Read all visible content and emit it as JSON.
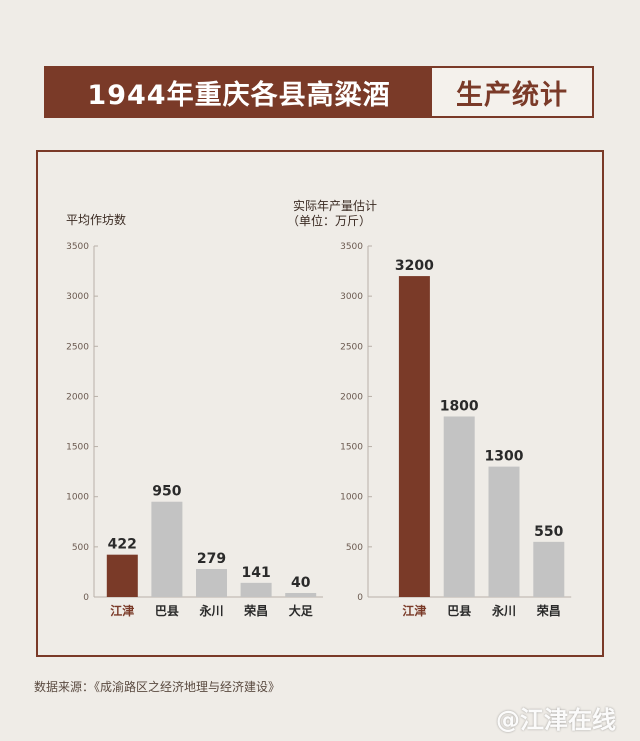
{
  "header": {
    "title_main": "1944年重庆各县高粱酒",
    "title_sub": "生产统计"
  },
  "source_note": "数据来源：《成渝路区之经济地理与经济建设》",
  "watermark": "@江津在线",
  "colors": {
    "highlight": "#7a3a28",
    "bar": "#c3c3c3",
    "axis": "#b8b0a8"
  },
  "chart_data": [
    {
      "type": "bar",
      "title": "",
      "ylabel": "平均作坊数",
      "categories": [
        "江津",
        "巴县",
        "永川",
        "荣昌",
        "大足"
      ],
      "values": [
        422,
        950,
        279,
        141,
        40
      ],
      "data_labels": [
        "422",
        "950",
        "279",
        "141",
        "40"
      ],
      "highlight_category": "江津",
      "ylim": [
        0,
        3500
      ],
      "yticks": [
        "0",
        "500",
        "1000",
        "1500",
        "2000",
        "2500",
        "3000",
        "3500"
      ],
      "grid": false
    },
    {
      "type": "bar",
      "title": "",
      "ylabel": "实际年产量估计",
      "ylabel_unit": "（单位：万斤）",
      "categories": [
        "江津",
        "巴县",
        "永川",
        "荣昌"
      ],
      "values": [
        3200,
        1800,
        1300,
        550
      ],
      "data_labels": [
        "3200",
        "1800",
        "1300",
        "550"
      ],
      "highlight_category": "江津",
      "ylim": [
        0,
        3500
      ],
      "yticks": [
        "0",
        "500",
        "1000",
        "1500",
        "2000",
        "2500",
        "3000",
        "3500"
      ],
      "grid": false
    }
  ]
}
